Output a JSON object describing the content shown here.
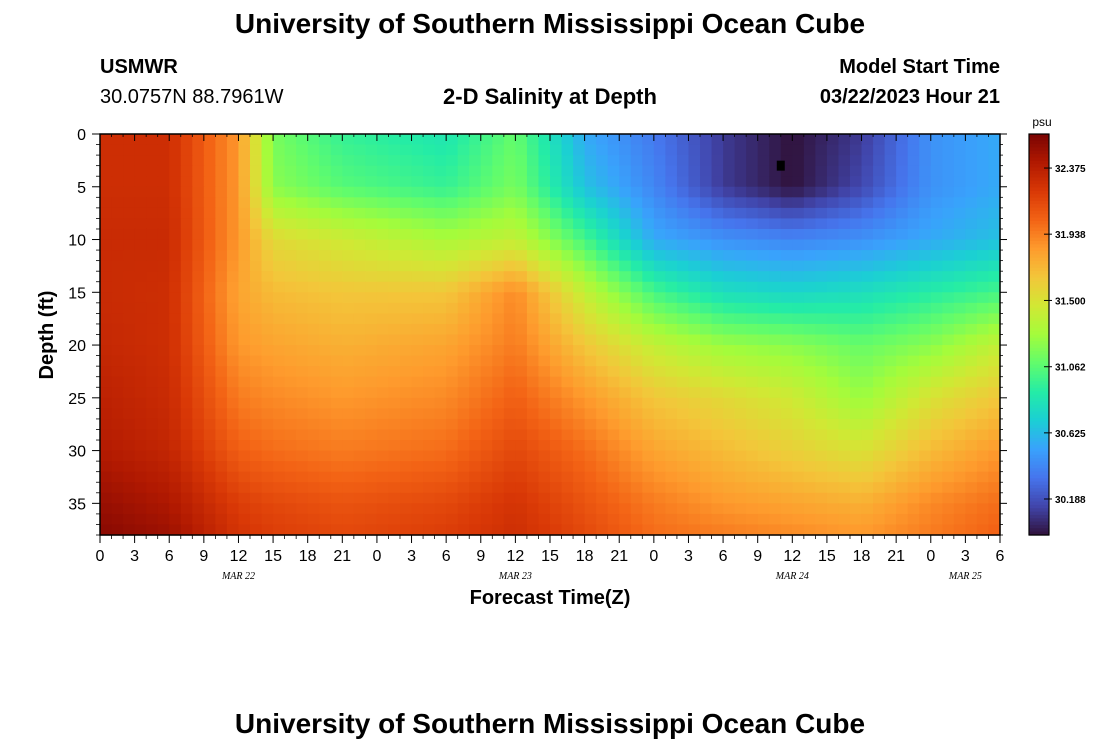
{
  "header": {
    "title": "University of Southern Mississippi Ocean Cube",
    "station": "USMWR",
    "coords": "30.0757N  88.7961W",
    "plot_title": "2-D Salinity at Depth",
    "model_start_label": "Model Start Time",
    "model_start_value": "03/22/2023 Hour 21"
  },
  "footer": {
    "title": "University of Southern Mississippi Ocean Cube"
  },
  "chart_data": {
    "type": "heatmap",
    "title": "2-D Salinity at Depth",
    "xlabel": "Forecast Time(Z)",
    "ylabel": "Depth (ft)",
    "x_tick_labels": [
      "0",
      "3",
      "6",
      "9",
      "12",
      "15",
      "18",
      "21",
      "0",
      "3",
      "6",
      "9",
      "12",
      "15",
      "18",
      "21",
      "0",
      "3",
      "6",
      "9",
      "12",
      "15",
      "18",
      "21",
      "0",
      "3",
      "6"
    ],
    "date_labels": [
      {
        "label": "MAR 22",
        "hour_index": 12
      },
      {
        "label": "MAR 23",
        "hour_index": 36
      },
      {
        "label": "MAR 24",
        "hour_index": 60
      },
      {
        "label": "MAR 25",
        "hour_index": 75
      }
    ],
    "x_range_hours": [
      0,
      78
    ],
    "y_tick_labels": [
      "0",
      "5",
      "10",
      "15",
      "20",
      "25",
      "30",
      "35"
    ],
    "y_range_ft": [
      0,
      38
    ],
    "colorbar": {
      "unit": "psu",
      "ticks": [
        "32.375",
        "31.938",
        "31.500",
        "31.062",
        "30.625",
        "30.188"
      ],
      "range": [
        29.95,
        32.6
      ],
      "colormap": [
        "#30123b",
        "#4145ab",
        "#4675ed",
        "#39a2fc",
        "#1bcfd4",
        "#24eca6",
        "#61fc6c",
        "#a4fc3b",
        "#d1e834",
        "#f3c63a",
        "#fe9b2d",
        "#f36315",
        "#d93806",
        "#b11901",
        "#7a0403"
      ]
    },
    "field_description_points": {
      "hours": [
        0,
        6,
        12,
        15,
        21,
        30,
        36,
        42,
        48,
        54,
        60,
        66,
        72,
        78
      ],
      "depths_ft": [
        0,
        5,
        10,
        15,
        20,
        25,
        30,
        35,
        38
      ],
      "values": [
        [
          32.28,
          32.28,
          31.85,
          31.15,
          30.95,
          30.85,
          31.1,
          30.55,
          30.35,
          30.1,
          29.95,
          30.1,
          30.45,
          30.55
        ],
        [
          32.28,
          32.28,
          31.85,
          31.2,
          31.05,
          30.95,
          31.15,
          30.65,
          30.4,
          30.1,
          29.95,
          30.15,
          30.45,
          30.55
        ],
        [
          32.3,
          32.3,
          31.85,
          31.55,
          31.45,
          31.3,
          31.4,
          31.0,
          30.55,
          30.45,
          30.4,
          30.45,
          30.55,
          30.65
        ],
        [
          32.3,
          32.28,
          31.8,
          31.7,
          31.65,
          31.65,
          31.9,
          31.4,
          31.0,
          30.8,
          30.75,
          30.8,
          30.9,
          31.0
        ],
        [
          32.32,
          32.28,
          31.85,
          31.8,
          31.75,
          31.8,
          31.95,
          31.65,
          31.4,
          31.25,
          31.2,
          31.1,
          31.2,
          31.4
        ],
        [
          32.36,
          32.3,
          31.95,
          31.9,
          31.85,
          31.9,
          32.05,
          31.85,
          31.65,
          31.55,
          31.45,
          31.25,
          31.5,
          31.65
        ],
        [
          32.4,
          32.33,
          32.05,
          32.0,
          31.95,
          32.0,
          32.15,
          32.0,
          31.8,
          31.7,
          31.6,
          31.5,
          31.7,
          31.85
        ],
        [
          32.5,
          32.42,
          32.2,
          32.15,
          32.1,
          32.15,
          32.25,
          32.1,
          31.95,
          31.85,
          31.8,
          31.75,
          31.9,
          32.0
        ],
        [
          32.55,
          32.48,
          32.25,
          32.2,
          32.15,
          32.2,
          32.28,
          32.15,
          32.0,
          31.95,
          31.9,
          31.85,
          31.95,
          32.05
        ]
      ]
    },
    "marker": {
      "hour": 59,
      "depth_ft": 3
    }
  }
}
